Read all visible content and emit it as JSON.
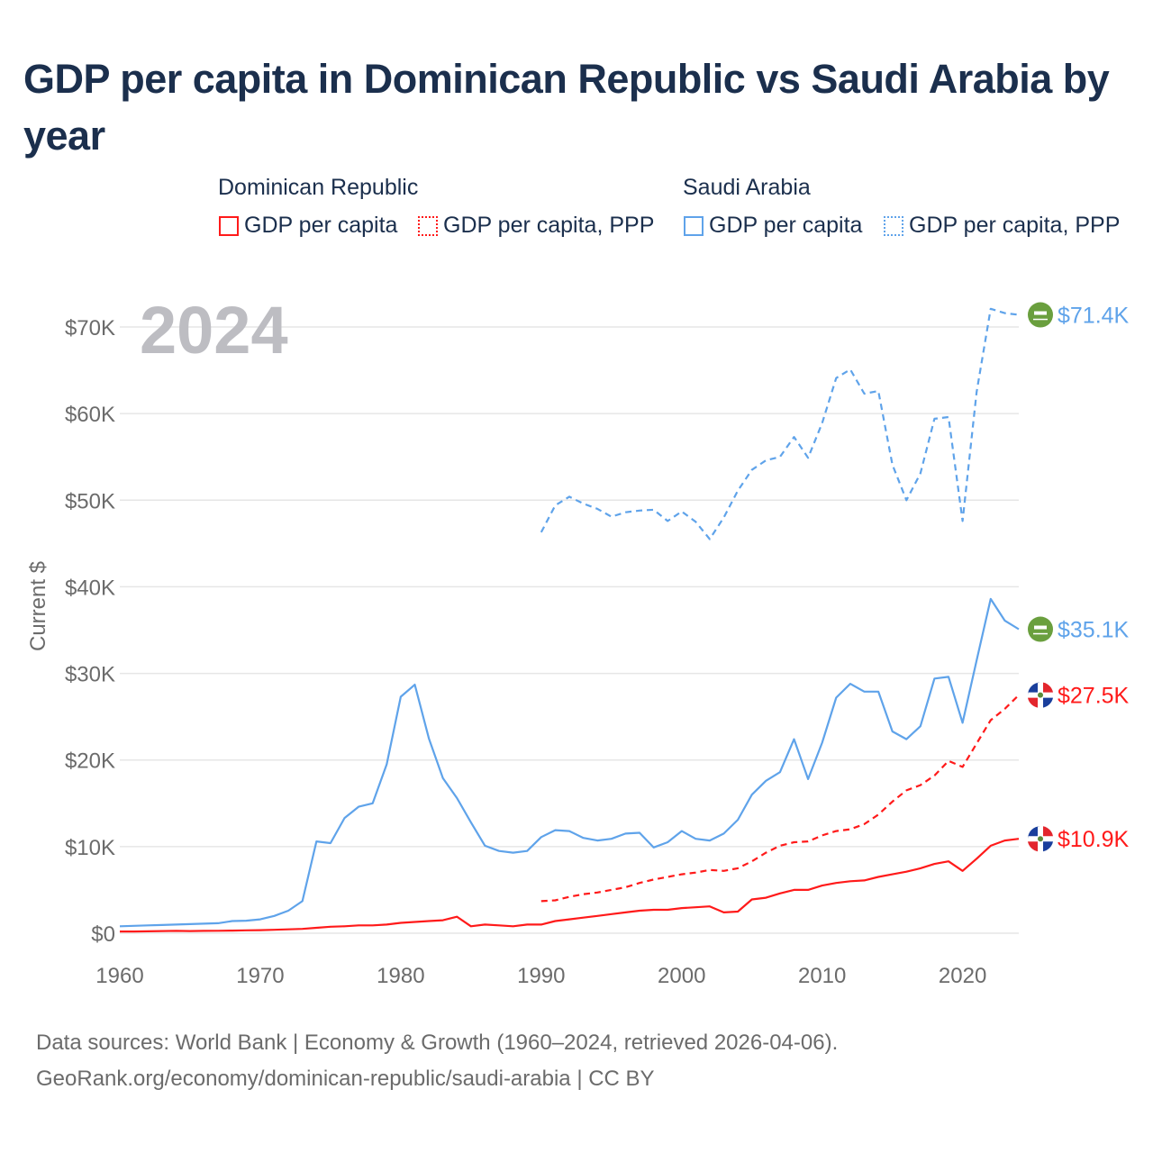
{
  "title": "GDP per capita in Dominican Republic vs Saudi Arabia by year",
  "legend": {
    "groups": [
      {
        "name": "Dominican Republic",
        "items": [
          "GDP per capita",
          "GDP per capita, PPP"
        ]
      },
      {
        "name": "Saudi Arabia",
        "items": [
          "GDP per capita",
          "GDP per capita, PPP"
        ]
      }
    ]
  },
  "year_watermark": "2024",
  "footer": {
    "line1": "Data sources: World Bank | Economy & Growth (1960–2024, retrieved 2026-04-06).",
    "line2": "GeoRank.org/economy/dominican-republic/saudi-arabia | CC BY"
  },
  "colors": {
    "dr": "#ff1a1a",
    "sa": "#5fa3ea",
    "grid": "#e6e6e6",
    "axis_text": "#6b6b6b"
  },
  "chart_data": {
    "type": "line",
    "ylabel": "Current $",
    "xlabel": "",
    "xlim": [
      1960,
      2024
    ],
    "ylim": [
      0,
      70000
    ],
    "x_ticks": [
      "1960",
      "1970",
      "1980",
      "1990",
      "2000",
      "2010",
      "2020"
    ],
    "y_ticks": [
      "$0",
      "$10K",
      "$20K",
      "$30K",
      "$40K",
      "$50K",
      "$60K",
      "$70K"
    ],
    "grid": true,
    "end_labels": {
      "sa_ppp": "$71.4K",
      "sa_gdp": "$35.1K",
      "dr_ppp": "$27.5K",
      "dr_gdp": "$10.9K"
    },
    "series": [
      {
        "key": "sa_ppp",
        "name": "Saudi Arabia GDP per capita, PPP",
        "style": "dashed",
        "start": 1990,
        "values": [
          46.3,
          49.4,
          50.4,
          49.6,
          49.0,
          48.1,
          48.6,
          48.8,
          48.9,
          47.6,
          48.7,
          47.5,
          45.5,
          48.0,
          51.1,
          53.5,
          54.6,
          55.0,
          57.3,
          54.9,
          58.9,
          64.1,
          65.1,
          62.3,
          62.6,
          54.1,
          50.0,
          53.1,
          59.4,
          59.6,
          47.6,
          62.5,
          72.1,
          71.6,
          71.4
        ]
      },
      {
        "key": "sa_gdp",
        "name": "Saudi Arabia GDP per capita",
        "style": "solid",
        "start": 1960,
        "values": [
          0.8,
          0.85,
          0.9,
          0.95,
          1.0,
          1.05,
          1.1,
          1.15,
          1.4,
          1.45,
          1.6,
          2.0,
          2.6,
          3.7,
          10.6,
          10.4,
          13.3,
          14.6,
          15.0,
          19.5,
          27.3,
          28.7,
          22.5,
          17.9,
          15.6,
          12.8,
          10.1,
          9.5,
          9.3,
          9.5,
          11.1,
          11.9,
          11.8,
          11.0,
          10.7,
          10.9,
          11.5,
          11.6,
          9.9,
          10.5,
          11.8,
          10.9,
          10.7,
          11.5,
          13.1,
          16.0,
          17.6,
          18.6,
          22.4,
          17.8,
          22.0,
          27.2,
          28.8,
          27.9,
          27.9,
          23.3,
          22.4,
          23.9,
          29.4,
          29.6,
          24.3,
          31.5,
          38.6,
          36.1,
          35.1
        ]
      },
      {
        "key": "dr_ppp",
        "name": "Dominican Republic GDP per capita, PPP",
        "style": "dashed",
        "start": 1990,
        "values": [
          3.7,
          3.8,
          4.2,
          4.5,
          4.7,
          5.0,
          5.3,
          5.8,
          6.2,
          6.5,
          6.8,
          7.0,
          7.3,
          7.2,
          7.5,
          8.3,
          9.3,
          10.1,
          10.5,
          10.6,
          11.3,
          11.8,
          12.0,
          12.6,
          13.7,
          15.2,
          16.5,
          17.1,
          18.2,
          19.9,
          19.2,
          21.9,
          24.6,
          25.9,
          27.5
        ]
      },
      {
        "key": "dr_gdp",
        "name": "Dominican Republic GDP per capita",
        "style": "solid",
        "start": 1960,
        "values": [
          0.2,
          0.2,
          0.22,
          0.25,
          0.27,
          0.25,
          0.27,
          0.28,
          0.3,
          0.33,
          0.35,
          0.4,
          0.45,
          0.5,
          0.62,
          0.75,
          0.8,
          0.9,
          0.9,
          1.0,
          1.2,
          1.3,
          1.4,
          1.5,
          1.9,
          0.8,
          1.0,
          0.9,
          0.8,
          1.0,
          1.0,
          1.4,
          1.6,
          1.8,
          2.0,
          2.2,
          2.4,
          2.6,
          2.7,
          2.7,
          2.9,
          3.0,
          3.1,
          2.4,
          2.5,
          3.9,
          4.1,
          4.6,
          5.0,
          5.0,
          5.5,
          5.8,
          6.0,
          6.1,
          6.5,
          6.8,
          7.1,
          7.5,
          8.0,
          8.3,
          7.2,
          8.6,
          10.1,
          10.7,
          10.9
        ]
      }
    ],
    "value_unit": "thousand US$"
  }
}
